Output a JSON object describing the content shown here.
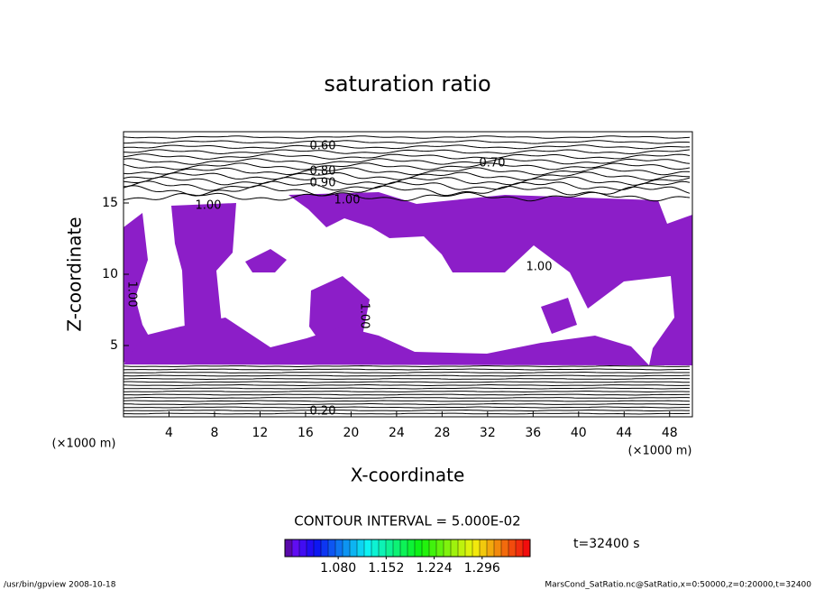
{
  "chart_data": {
    "type": "contour",
    "title": "saturation ratio",
    "x_label": "X-coordinate",
    "y_label": "Z-coordinate",
    "x_unit": "(×1000 m)",
    "y_unit": "(×1000 m)",
    "xlim": [
      0,
      50
    ],
    "ylim": [
      0,
      20
    ],
    "xticks": [
      4,
      8,
      12,
      16,
      20,
      24,
      28,
      32,
      36,
      40,
      44,
      48
    ],
    "yticks": [
      5,
      10,
      15
    ],
    "fill_color": "#8c1ec8",
    "contour_labels": [
      {
        "value": 0.6,
        "label": "0.60"
      },
      {
        "value": 0.7,
        "label": "0.70"
      },
      {
        "value": 0.8,
        "label": "0.80"
      },
      {
        "value": 0.9,
        "label": "0.90"
      },
      {
        "value": 1.0,
        "label": "1.00"
      },
      {
        "value": 1.0,
        "label": "1.00"
      },
      {
        "value": 1.0,
        "label": "1.00"
      },
      {
        "value": 1.0,
        "label": "1.00"
      },
      {
        "value": 1.0,
        "label": "1.00"
      },
      {
        "value": 0.2,
        "label": "0.20"
      }
    ],
    "contour_interval": "CONTOUR INTERVAL = 5.000E-02",
    "colorbar_lim": [
      1.0,
      1.368
    ],
    "colorbar_ticks": [
      {
        "value": 1.08,
        "label": "1.080"
      },
      {
        "value": 1.152,
        "label": "1.152"
      },
      {
        "value": 1.224,
        "label": "1.224"
      },
      {
        "value": 1.296,
        "label": "1.296"
      }
    ],
    "time_label": "t=32400 s",
    "footer_left": "/usr/bin/gpview   2008-10-18",
    "footer_right": "MarsCond_SatRatio.nc@SatRatio,x=0:50000,z=0:20000,t=32400"
  }
}
